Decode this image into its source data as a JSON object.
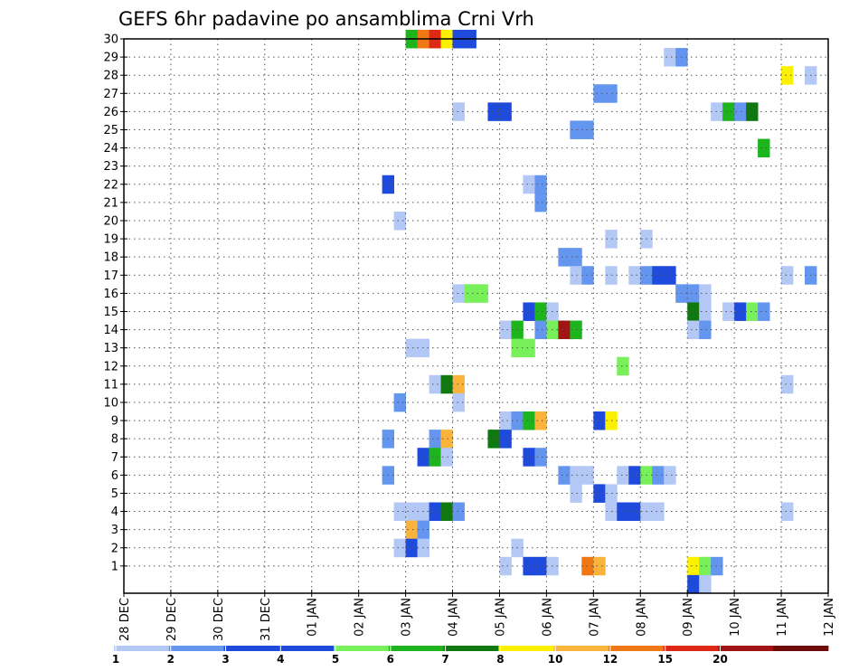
{
  "chart_data": {
    "type": "heatmap",
    "title": "GEFS 6hr padavine po ansamblima Crni Vrh",
    "x_tick_labels": [
      "28 DEC",
      "29 DEC",
      "30 DEC",
      "31 DEC",
      "01 JAN",
      "02 JAN",
      "03 JAN",
      "04 JAN",
      "05 JAN",
      "06 JAN",
      "07 JAN",
      "08 JAN",
      "09 JAN",
      "10 JAN",
      "11 JAN",
      "12 JAN"
    ],
    "y_tick_labels": [
      "1",
      "2",
      "3",
      "4",
      "5",
      "6",
      "7",
      "8",
      "9",
      "10",
      "11",
      "12",
      "13",
      "14",
      "15",
      "16",
      "17",
      "18",
      "19",
      "20",
      "21",
      "22",
      "23",
      "24",
      "25",
      "26",
      "27",
      "28",
      "29",
      "30"
    ],
    "x_range_days": [
      0,
      15
    ],
    "y_range": [
      0,
      30
    ],
    "grid": "dotted",
    "colorbar": {
      "labels": [
        "1",
        "2",
        "3",
        "4",
        "5",
        "6",
        "7",
        "8",
        "10",
        "12",
        "15",
        "20"
      ],
      "colors": [
        "#b4c8f5",
        "#6496f0",
        "#1e4bdc",
        "#1e4bdc",
        "#78f05a",
        "#1eb41e",
        "#0f780f",
        "#faf000",
        "#fab43c",
        "#f07814",
        "#dc2814",
        "#a01414",
        "#6e0a0a"
      ]
    },
    "cells": [
      {
        "e": 30,
        "d": 6.0,
        "c": 5
      },
      {
        "e": 30,
        "d": 6.25,
        "c": 9
      },
      {
        "e": 30,
        "d": 6.5,
        "c": 10
      },
      {
        "e": 30,
        "d": 6.75,
        "c": 7
      },
      {
        "e": 30,
        "d": 7.0,
        "c": 3
      },
      {
        "e": 30,
        "d": 7.25,
        "c": 3
      },
      {
        "e": 29,
        "d": 11.5,
        "c": 0
      },
      {
        "e": 29,
        "d": 11.75,
        "c": 1
      },
      {
        "e": 28,
        "d": 14.0,
        "c": 7
      },
      {
        "e": 28,
        "d": 14.5,
        "c": 0
      },
      {
        "e": 27,
        "d": 10.0,
        "c": 1
      },
      {
        "e": 27,
        "d": 10.25,
        "c": 1
      },
      {
        "e": 26,
        "d": 7.0,
        "c": 0
      },
      {
        "e": 26,
        "d": 7.75,
        "c": 2
      },
      {
        "e": 26,
        "d": 8.0,
        "c": 2
      },
      {
        "e": 26,
        "d": 12.5,
        "c": 0
      },
      {
        "e": 26,
        "d": 12.75,
        "c": 5
      },
      {
        "e": 26,
        "d": 13.0,
        "c": 1
      },
      {
        "e": 26,
        "d": 13.25,
        "c": 6
      },
      {
        "e": 25,
        "d": 9.5,
        "c": 1
      },
      {
        "e": 25,
        "d": 9.75,
        "c": 1
      },
      {
        "e": 24,
        "d": 13.5,
        "c": 5
      },
      {
        "e": 22,
        "d": 5.5,
        "c": 2
      },
      {
        "e": 22,
        "d": 8.5,
        "c": 0
      },
      {
        "e": 22,
        "d": 8.75,
        "c": 1
      },
      {
        "e": 21,
        "d": 8.75,
        "c": 1
      },
      {
        "e": 20,
        "d": 5.75,
        "c": 0
      },
      {
        "e": 19,
        "d": 10.25,
        "c": 0
      },
      {
        "e": 19,
        "d": 11.0,
        "c": 0
      },
      {
        "e": 18,
        "d": 9.25,
        "c": 1
      },
      {
        "e": 18,
        "d": 9.5,
        "c": 1
      },
      {
        "e": 17,
        "d": 9.5,
        "c": 0
      },
      {
        "e": 17,
        "d": 9.75,
        "c": 1
      },
      {
        "e": 17,
        "d": 10.25,
        "c": 0
      },
      {
        "e": 17,
        "d": 10.75,
        "c": 0
      },
      {
        "e": 17,
        "d": 11.0,
        "c": 1
      },
      {
        "e": 17,
        "d": 11.25,
        "c": 2
      },
      {
        "e": 17,
        "d": 11.5,
        "c": 2
      },
      {
        "e": 17,
        "d": 14.0,
        "c": 0
      },
      {
        "e": 17,
        "d": 14.5,
        "c": 1
      },
      {
        "e": 16,
        "d": 7.0,
        "c": 0
      },
      {
        "e": 16,
        "d": 7.25,
        "c": 4
      },
      {
        "e": 16,
        "d": 7.5,
        "c": 4
      },
      {
        "e": 16,
        "d": 11.75,
        "c": 1
      },
      {
        "e": 16,
        "d": 12.0,
        "c": 1
      },
      {
        "e": 16,
        "d": 12.25,
        "c": 0
      },
      {
        "e": 15,
        "d": 8.5,
        "c": 2
      },
      {
        "e": 15,
        "d": 8.75,
        "c": 5
      },
      {
        "e": 15,
        "d": 9.0,
        "c": 0
      },
      {
        "e": 15,
        "d": 12.0,
        "c": 6
      },
      {
        "e": 15,
        "d": 12.25,
        "c": 0
      },
      {
        "e": 15,
        "d": 12.75,
        "c": 0
      },
      {
        "e": 15,
        "d": 13.0,
        "c": 2
      },
      {
        "e": 15,
        "d": 13.25,
        "c": 4
      },
      {
        "e": 15,
        "d": 13.5,
        "c": 1
      },
      {
        "e": 14,
        "d": 8.0,
        "c": 0
      },
      {
        "e": 14,
        "d": 8.25,
        "c": 5
      },
      {
        "e": 14,
        "d": 8.75,
        "c": 1
      },
      {
        "e": 14,
        "d": 9.0,
        "c": 4
      },
      {
        "e": 14,
        "d": 9.25,
        "c": 11
      },
      {
        "e": 14,
        "d": 9.5,
        "c": 5
      },
      {
        "e": 14,
        "d": 12.0,
        "c": 0
      },
      {
        "e": 14,
        "d": 12.25,
        "c": 1
      },
      {
        "e": 13,
        "d": 6.0,
        "c": 0
      },
      {
        "e": 13,
        "d": 6.25,
        "c": 0
      },
      {
        "e": 13,
        "d": 8.25,
        "c": 4
      },
      {
        "e": 13,
        "d": 8.5,
        "c": 4
      },
      {
        "e": 12,
        "d": 10.5,
        "c": 4
      },
      {
        "e": 11,
        "d": 6.5,
        "c": 0
      },
      {
        "e": 11,
        "d": 6.75,
        "c": 6
      },
      {
        "e": 11,
        "d": 7.0,
        "c": 8
      },
      {
        "e": 11,
        "d": 14.0,
        "c": 0
      },
      {
        "e": 10,
        "d": 5.75,
        "c": 1
      },
      {
        "e": 10,
        "d": 7.0,
        "c": 0
      },
      {
        "e": 9,
        "d": 8.0,
        "c": 0
      },
      {
        "e": 9,
        "d": 8.25,
        "c": 1
      },
      {
        "e": 9,
        "d": 8.5,
        "c": 5
      },
      {
        "e": 9,
        "d": 8.75,
        "c": 8
      },
      {
        "e": 9,
        "d": 10.0,
        "c": 2
      },
      {
        "e": 9,
        "d": 10.25,
        "c": 7
      },
      {
        "e": 8,
        "d": 5.5,
        "c": 1
      },
      {
        "e": 8,
        "d": 6.5,
        "c": 1
      },
      {
        "e": 8,
        "d": 6.75,
        "c": 8
      },
      {
        "e": 8,
        "d": 7.75,
        "c": 6
      },
      {
        "e": 8,
        "d": 8.0,
        "c": 2
      },
      {
        "e": 7,
        "d": 6.25,
        "c": 2
      },
      {
        "e": 7,
        "d": 6.5,
        "c": 5
      },
      {
        "e": 7,
        "d": 6.75,
        "c": 0
      },
      {
        "e": 7,
        "d": 8.5,
        "c": 2
      },
      {
        "e": 7,
        "d": 8.75,
        "c": 1
      },
      {
        "e": 6,
        "d": 5.5,
        "c": 1
      },
      {
        "e": 6,
        "d": 9.25,
        "c": 1
      },
      {
        "e": 6,
        "d": 9.5,
        "c": 0
      },
      {
        "e": 6,
        "d": 9.75,
        "c": 0
      },
      {
        "e": 6,
        "d": 10.5,
        "c": 0
      },
      {
        "e": 6,
        "d": 10.75,
        "c": 2
      },
      {
        "e": 6,
        "d": 11.0,
        "c": 4
      },
      {
        "e": 6,
        "d": 11.25,
        "c": 1
      },
      {
        "e": 6,
        "d": 11.5,
        "c": 0
      },
      {
        "e": 5,
        "d": 9.5,
        "c": 0
      },
      {
        "e": 5,
        "d": 10.0,
        "c": 2
      },
      {
        "e": 5,
        "d": 10.25,
        "c": 0
      },
      {
        "e": 4,
        "d": 5.75,
        "c": 0
      },
      {
        "e": 4,
        "d": 6.0,
        "c": 0
      },
      {
        "e": 4,
        "d": 6.25,
        "c": 0
      },
      {
        "e": 4,
        "d": 6.5,
        "c": 2
      },
      {
        "e": 4,
        "d": 6.75,
        "c": 6
      },
      {
        "e": 4,
        "d": 7.0,
        "c": 1
      },
      {
        "e": 4,
        "d": 10.25,
        "c": 0
      },
      {
        "e": 4,
        "d": 10.5,
        "c": 2
      },
      {
        "e": 4,
        "d": 10.75,
        "c": 2
      },
      {
        "e": 4,
        "d": 11.0,
        "c": 0
      },
      {
        "e": 4,
        "d": 11.25,
        "c": 0
      },
      {
        "e": 4,
        "d": 14.0,
        "c": 0
      },
      {
        "e": 3,
        "d": 6.0,
        "c": 8
      },
      {
        "e": 3,
        "d": 6.25,
        "c": 1
      },
      {
        "e": 2,
        "d": 5.75,
        "c": 0
      },
      {
        "e": 2,
        "d": 6.0,
        "c": 2
      },
      {
        "e": 2,
        "d": 6.25,
        "c": 0
      },
      {
        "e": 2,
        "d": 8.25,
        "c": 0
      },
      {
        "e": 1,
        "d": 8.0,
        "c": 0
      },
      {
        "e": 1,
        "d": 8.5,
        "c": 2
      },
      {
        "e": 1,
        "d": 8.75,
        "c": 2
      },
      {
        "e": 1,
        "d": 9.0,
        "c": 0
      },
      {
        "e": 1,
        "d": 9.75,
        "c": 9
      },
      {
        "e": 1,
        "d": 10.0,
        "c": 8
      },
      {
        "e": 1,
        "d": 12.0,
        "c": 7
      },
      {
        "e": 1,
        "d": 12.25,
        "c": 4
      },
      {
        "e": 1,
        "d": 12.5,
        "c": 1
      },
      {
        "e": 0,
        "d": 12.0,
        "c": 2
      },
      {
        "e": 0,
        "d": 12.25,
        "c": 0
      }
    ]
  }
}
